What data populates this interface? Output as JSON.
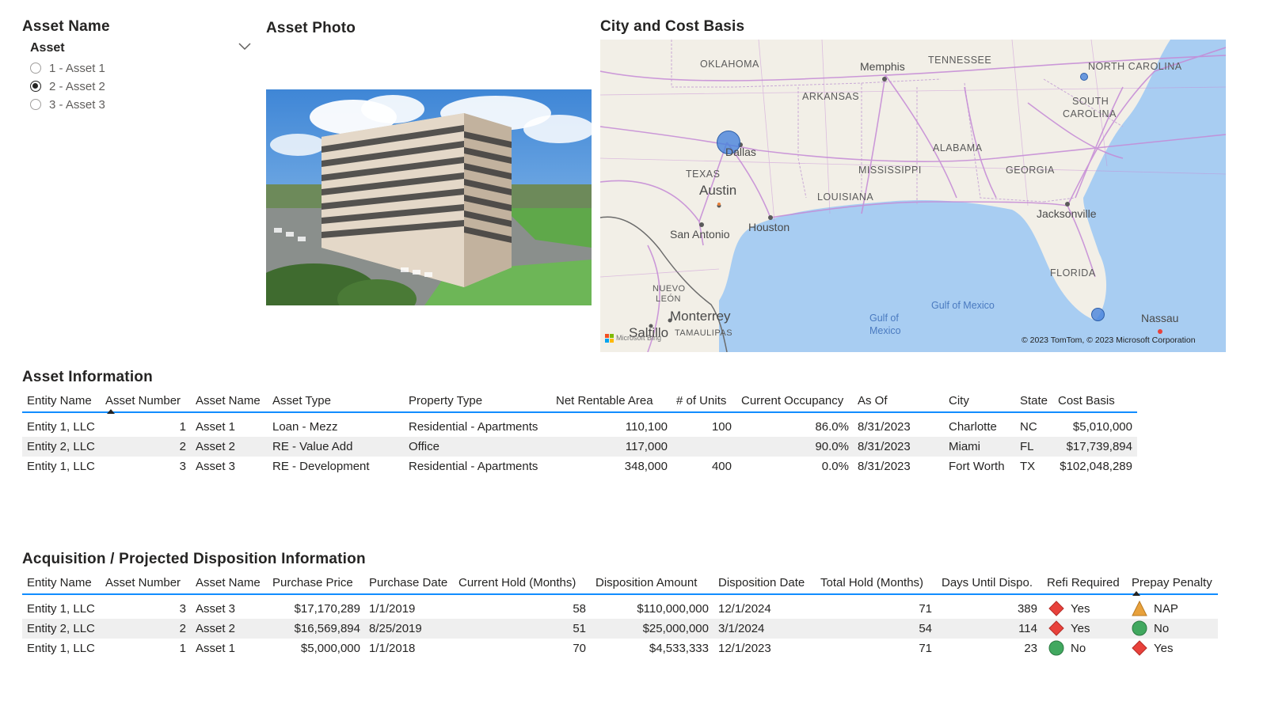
{
  "slicer": {
    "title": "Asset Name",
    "header": "Asset",
    "items": [
      {
        "label": "1 - Asset 1",
        "selected": false
      },
      {
        "label": "2 - Asset 2",
        "selected": true
      },
      {
        "label": "3 - Asset 3",
        "selected": false
      }
    ]
  },
  "photo": {
    "title": "Asset Photo"
  },
  "map": {
    "title": "City and Cost Basis",
    "states": [
      "OKLAHOMA",
      "TENNESSEE",
      "NORTH CAROLINA",
      "ARKANSAS",
      "SOUTH",
      "CAROLINA",
      "TEXAS",
      "ALABAMA",
      "MISSISSIPPI",
      "GEORGIA",
      "LOUISIANA",
      "FLORIDA",
      "NUEVO",
      "LEÓN",
      "TAMAULIPAS"
    ],
    "cities": [
      "Memphis",
      "Dallas",
      "Austin",
      "San Antonio",
      "Houston",
      "Jacksonville",
      "Monterrey",
      "Saltillo",
      "Nassau"
    ],
    "water": [
      "Gulf of Mexico",
      "Gulf of",
      "Mexico"
    ],
    "attribution": "© 2023 TomTom, © 2023 Microsoft Corporation",
    "bing": "Microsoft Bing",
    "colors": {
      "land": "#f2efe7",
      "water": "#a8cdf2",
      "roads": "#c58ad6",
      "bubble": "#4682dc"
    }
  },
  "asset_info": {
    "title": "Asset Information",
    "columns": [
      "Entity Name",
      "Asset Number",
      "Asset Name",
      "Asset Type",
      "Property Type",
      "Net Rentable Area",
      "# of Units",
      "Current Occupancy",
      "As Of",
      "City",
      "State",
      "Cost Basis"
    ],
    "rows": [
      [
        "Entity 1, LLC",
        "1",
        "Asset 1",
        "Loan - Mezz",
        "Residential - Apartments",
        "110,100",
        "100",
        "86.0%",
        "8/31/2023",
        "Charlotte",
        "NC",
        "$5,010,000"
      ],
      [
        "Entity 2, LLC",
        "2",
        "Asset 2",
        "RE - Value Add",
        "Office",
        "117,000",
        "",
        "90.0%",
        "8/31/2023",
        "Miami",
        "FL",
        "$17,739,894"
      ],
      [
        "Entity 1, LLC",
        "3",
        "Asset 3",
        "RE - Development",
        "Residential - Apartments",
        "348,000",
        "400",
        "0.0%",
        "8/31/2023",
        "Fort Worth",
        "TX",
        "$102,048,289"
      ]
    ]
  },
  "acq_info": {
    "title": "Acquisition / Projected Disposition Information",
    "columns": [
      "Entity Name",
      "Asset Number",
      "Asset Name",
      "Purchase Price",
      "Purchase Date",
      "Current Hold (Months)",
      "Disposition Amount",
      "Disposition Date",
      "Total Hold (Months)",
      "Days Until Dispo.",
      "Refi Required",
      "Prepay Penalty"
    ],
    "rows": [
      [
        "Entity 1, LLC",
        "3",
        "Asset 3",
        "$17,170,289",
        "1/1/2019",
        "58",
        "$110,000,000",
        "12/1/2024",
        "71",
        "389",
        "Yes",
        "NAP"
      ],
      [
        "Entity 2, LLC",
        "2",
        "Asset 2",
        "$16,569,894",
        "8/25/2019",
        "51",
        "$25,000,000",
        "3/1/2024",
        "54",
        "114",
        "Yes",
        "No"
      ],
      [
        "Entity 1, LLC",
        "1",
        "Asset 1",
        "$5,000,000",
        "1/1/2018",
        "70",
        "$4,533,333",
        "12/1/2023",
        "71",
        "23",
        "No",
        "Yes"
      ]
    ],
    "refi_icons": [
      "red-diamond-icon",
      "red-diamond-icon",
      "green-circle-icon"
    ],
    "prepay_icons": [
      "orange-triangle-icon",
      "green-circle-icon",
      "red-diamond-icon"
    ],
    "icon_colors": {
      "red": "#e8413b",
      "green": "#41a85f",
      "orange": "#e8a13b"
    }
  }
}
